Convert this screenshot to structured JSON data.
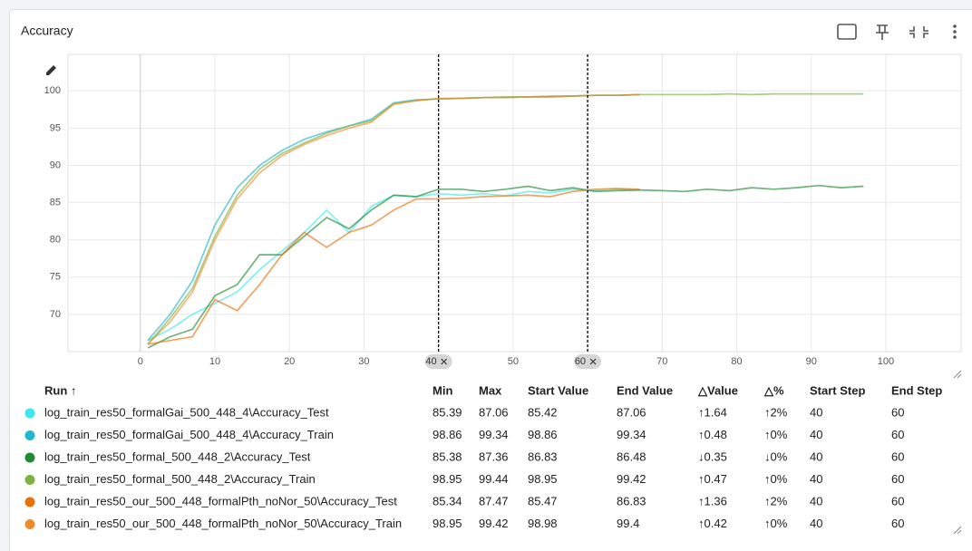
{
  "card": {
    "title": "Accuracy"
  },
  "chart_data": {
    "type": "line",
    "x": [
      1,
      4,
      7,
      10,
      13,
      16,
      19,
      22,
      25,
      28,
      31,
      34,
      37,
      40,
      43,
      46,
      49,
      52,
      55,
      58,
      61,
      64,
      67,
      70,
      73,
      76,
      79,
      82,
      85,
      88,
      91,
      94,
      97
    ],
    "xlim": [
      -9.7,
      110.1
    ],
    "xticks": [
      0,
      10,
      20,
      30,
      40,
      50,
      60,
      70,
      80,
      90,
      100
    ],
    "ylim": [
      65,
      104.9
    ],
    "yticks": [
      70,
      75,
      80,
      85,
      90,
      95,
      100
    ],
    "grid": true,
    "selection": [
      40,
      60
    ],
    "series": [
      {
        "name": "log_train_res50_formalGai_500_448_4\\Accuracy_Test",
        "color": "#3ee6ee",
        "values": [
          66.5,
          68,
          70,
          71.5,
          73,
          76,
          78.5,
          81,
          84,
          81,
          84.5,
          86,
          85.8,
          86.2,
          86,
          86.2,
          85.9,
          86.5,
          86.3,
          86.8,
          86.6,
          86.8,
          86.7,
          null,
          null,
          null,
          null,
          null,
          null,
          null,
          null,
          null,
          null
        ]
      },
      {
        "name": "log_train_res50_formalGai_500_448_4\\Accuracy_Train",
        "color": "#22b5cf",
        "values": [
          66.5,
          70,
          74.5,
          82,
          87,
          90,
          92,
          93.5,
          94.5,
          95.3,
          96.2,
          98.4,
          98.8,
          98.9,
          99,
          99.1,
          99.1,
          99.2,
          99.2,
          99.3,
          99.4,
          99.4,
          99.5,
          null,
          null,
          null,
          null,
          null,
          null,
          null,
          null,
          null,
          null
        ]
      },
      {
        "name": "log_train_res50_formal_500_448_2\\Accuracy_Test",
        "color": "#1e8a32",
        "values": [
          65.5,
          67,
          68,
          72.5,
          74,
          78,
          78,
          80.5,
          83,
          81.5,
          84,
          86,
          85.8,
          86.8,
          86.8,
          86.5,
          86.8,
          87.2,
          86.6,
          87,
          86.5,
          86.6,
          86.7,
          86.6,
          86.5,
          86.8,
          86.6,
          87,
          86.8,
          87,
          87.3,
          87,
          87.2
        ]
      },
      {
        "name": "log_train_res50_formal_500_448_2\\Accuracy_Train",
        "color": "#7cb342",
        "values": [
          66,
          69.5,
          73.5,
          80.5,
          86,
          89.5,
          91.6,
          93,
          94.3,
          95.3,
          96,
          98.3,
          98.7,
          98.95,
          99,
          99.1,
          99.2,
          99.2,
          99.3,
          99.3,
          99.4,
          99.4,
          99.5,
          99.5,
          99.5,
          99.5,
          99.6,
          99.5,
          99.6,
          99.6,
          99.6,
          99.6,
          99.6
        ]
      },
      {
        "name": "log_train_res50_our_500_448_formalPth_noNor_50\\Accuracy_Test",
        "color": "#e8710a",
        "values": [
          66,
          66.5,
          67,
          72,
          70.5,
          74,
          78,
          81,
          79,
          81,
          82,
          84,
          85.5,
          85.5,
          85.6,
          85.8,
          85.9,
          86,
          85.8,
          86.5,
          86.8,
          86.9,
          86.8,
          null,
          null,
          null,
          null,
          null,
          null,
          null,
          null,
          null,
          null
        ]
      },
      {
        "name": "log_train_res50_our_500_448_formalPth_noNor_50\\Accuracy_Train",
        "color": "#f08a2a",
        "values": [
          66,
          69,
          73,
          80,
          85.5,
          89,
          91.3,
          92.8,
          94,
          95,
          95.8,
          98.2,
          98.7,
          98.98,
          99,
          99.1,
          99.1,
          99.2,
          99.2,
          99.3,
          99.4,
          99.4,
          99.5,
          null,
          null,
          null,
          null,
          null,
          null,
          null,
          null,
          null,
          null
        ]
      }
    ]
  },
  "table": {
    "columns": [
      "Run ↑",
      "Min",
      "Max",
      "Start Value",
      "End Value",
      "△Value",
      "△%",
      "Start Step",
      "End Step"
    ],
    "rows": [
      [
        85.39,
        87.06,
        85.42,
        87.06,
        "↑1.64",
        "↑2%",
        40,
        60
      ],
      [
        98.86,
        99.34,
        98.86,
        99.34,
        "↑0.48",
        "↑0%",
        40,
        60
      ],
      [
        85.38,
        87.36,
        86.83,
        86.48,
        "↓0.35",
        "↓0%",
        40,
        60
      ],
      [
        98.95,
        99.44,
        98.95,
        99.42,
        "↑0.47",
        "↑0%",
        40,
        60
      ],
      [
        85.34,
        87.47,
        85.47,
        86.83,
        "↑1.36",
        "↑2%",
        40,
        60
      ],
      [
        98.95,
        99.42,
        98.98,
        99.4,
        "↑0.42",
        "↑0%",
        40,
        60
      ]
    ]
  }
}
